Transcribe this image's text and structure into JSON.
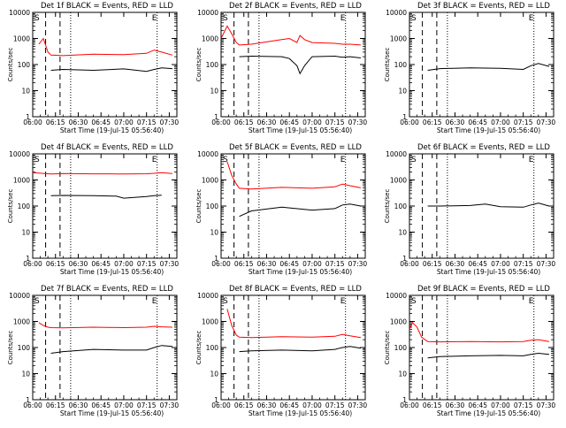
{
  "figure": {
    "x_tick_labels": [
      "06:00",
      "06:15",
      "06:30",
      "06:45",
      "07:00",
      "07:15",
      "07:30"
    ],
    "y_tick_labels": [
      "1",
      "10",
      "100",
      "1000",
      "10000"
    ],
    "ylabel": "Counts/sec",
    "xlabel": "Start Time (19-Jul-15 05:56:40)",
    "marker_S": "S",
    "marker_E": "E",
    "colors": {
      "events": "#000000",
      "lld": "#ff0000"
    }
  },
  "chart_data": [
    {
      "type": "line",
      "title": "Det 1f BLACK = Events, RED = LLD",
      "x": [
        0,
        4,
        7,
        10,
        12,
        20,
        40,
        60,
        75,
        80,
        85,
        92
      ],
      "xlim": [
        0,
        95
      ],
      "ylim": [
        1,
        10000
      ],
      "yscale": "log",
      "series": [
        {
          "name": "Events",
          "values": [
            null,
            null,
            null,
            null,
            60,
            65,
            60,
            68,
            55,
            65,
            75,
            70
          ]
        },
        {
          "name": "LLD",
          "values": [
            null,
            600,
            1000,
            300,
            230,
            220,
            250,
            240,
            270,
            360,
            300,
            230
          ]
        }
      ]
    },
    {
      "type": "line",
      "title": "Det 2f BLACK = Events, RED = LLD",
      "x": [
        0,
        4,
        7,
        10,
        12,
        20,
        40,
        45,
        50,
        52,
        55,
        60,
        75,
        80,
        85,
        92
      ],
      "xlim": [
        0,
        95
      ],
      "ylim": [
        1,
        10000
      ],
      "yscale": "log",
      "series": [
        {
          "name": "Events",
          "values": [
            null,
            null,
            null,
            null,
            200,
            210,
            200,
            170,
            90,
            45,
            90,
            200,
            210,
            190,
            200,
            180
          ]
        },
        {
          "name": "LLD",
          "values": [
            1000,
            3000,
            1500,
            700,
            560,
            600,
            900,
            1000,
            700,
            1300,
            900,
            700,
            650,
            600,
            600,
            560
          ]
        }
      ]
    },
    {
      "type": "line",
      "title": "Det 3f BLACK = Events, RED = LLD",
      "x": [
        0,
        12,
        20,
        40,
        60,
        75,
        80,
        85,
        92
      ],
      "xlim": [
        0,
        95
      ],
      "ylim": [
        1,
        10000
      ],
      "yscale": "log",
      "series": [
        {
          "name": "Events",
          "values": [
            null,
            60,
            70,
            75,
            72,
            65,
            90,
            110,
            85
          ]
        }
      ]
    },
    {
      "type": "line",
      "title": "Det 4f BLACK = Events, RED = LLD",
      "x": [
        0,
        12,
        20,
        40,
        55,
        60,
        75,
        80,
        85,
        92
      ],
      "xlim": [
        0,
        95
      ],
      "ylim": [
        1,
        10000
      ],
      "yscale": "log",
      "series": [
        {
          "name": "Events",
          "values": [
            null,
            250,
            255,
            250,
            240,
            200,
            230,
            250,
            260,
            null
          ]
        },
        {
          "name": "LLD",
          "values": [
            1900,
            1700,
            1750,
            1720,
            1700,
            1700,
            1730,
            1800,
            1900,
            1750
          ]
        }
      ]
    },
    {
      "type": "line",
      "title": "Det 5f BLACK = Events, RED = LLD",
      "x": [
        0,
        4,
        7,
        10,
        12,
        20,
        40,
        60,
        75,
        80,
        85,
        92
      ],
      "xlim": [
        0,
        95
      ],
      "ylim": [
        1,
        10000
      ],
      "yscale": "log",
      "series": [
        {
          "name": "Events",
          "values": [
            null,
            null,
            null,
            null,
            40,
            65,
            90,
            70,
            80,
            110,
            120,
            100
          ]
        },
        {
          "name": "LLD",
          "values": [
            null,
            5000,
            1500,
            700,
            480,
            450,
            520,
            480,
            550,
            700,
            600,
            500
          ]
        }
      ]
    },
    {
      "type": "line",
      "title": "Det 6f BLACK = Events, RED = LLD",
      "x": [
        0,
        12,
        20,
        40,
        50,
        60,
        75,
        80,
        85,
        92
      ],
      "xlim": [
        0,
        95
      ],
      "ylim": [
        1,
        10000
      ],
      "yscale": "log",
      "series": [
        {
          "name": "Events",
          "values": [
            null,
            100,
            100,
            105,
            120,
            95,
            90,
            110,
            130,
            100
          ]
        }
      ]
    },
    {
      "type": "line",
      "title": "Det 7f BLACK = Events, RED = LLD",
      "x": [
        0,
        4,
        7,
        10,
        12,
        20,
        40,
        60,
        75,
        80,
        85,
        92
      ],
      "xlim": [
        0,
        95
      ],
      "ylim": [
        1,
        10000
      ],
      "yscale": "log",
      "series": [
        {
          "name": "Events",
          "values": [
            null,
            null,
            null,
            null,
            60,
            70,
            85,
            80,
            80,
            100,
            120,
            110
          ]
        },
        {
          "name": "LLD",
          "values": [
            null,
            900,
            700,
            600,
            580,
            570,
            600,
            580,
            600,
            650,
            620,
            600
          ]
        }
      ]
    },
    {
      "type": "line",
      "title": "Det 8f BLACK = Events, RED = LLD",
      "x": [
        0,
        4,
        7,
        10,
        12,
        20,
        40,
        60,
        75,
        80,
        85,
        92
      ],
      "xlim": [
        0,
        95
      ],
      "ylim": [
        1,
        10000
      ],
      "yscale": "log",
      "series": [
        {
          "name": "Events",
          "values": [
            null,
            null,
            null,
            null,
            70,
            75,
            80,
            75,
            85,
            100,
            110,
            95
          ]
        },
        {
          "name": "LLD",
          "values": [
            null,
            3000,
            700,
            300,
            250,
            240,
            260,
            250,
            270,
            320,
            280,
            240
          ]
        }
      ]
    },
    {
      "type": "line",
      "title": "Det 9f BLACK = Events, RED = LLD",
      "x": [
        0,
        2,
        5,
        8,
        12,
        20,
        40,
        60,
        75,
        80,
        85,
        92
      ],
      "xlim": [
        0,
        95
      ],
      "ylim": [
        1,
        10000
      ],
      "yscale": "log",
      "series": [
        {
          "name": "Events",
          "values": [
            null,
            null,
            null,
            null,
            40,
            45,
            48,
            50,
            48,
            55,
            60,
            55
          ]
        },
        {
          "name": "LLD",
          "values": [
            500,
            900,
            600,
            250,
            170,
            165,
            170,
            165,
            170,
            190,
            200,
            170
          ]
        }
      ]
    }
  ]
}
